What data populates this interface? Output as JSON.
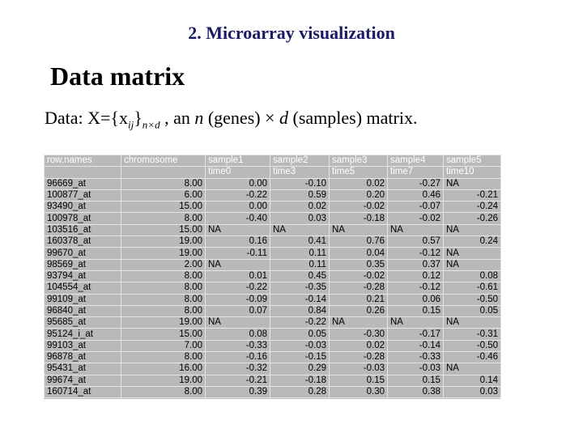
{
  "slide": {
    "title": "2. Microarray visualization",
    "heading": "Data matrix",
    "desc": {
      "prefix": "Data: X={x",
      "sub_ij": "ij",
      "brace": "}",
      "sub_nd": "n×d",
      "middle": " , an ",
      "n": "n",
      "genes": " (genes) × ",
      "d": "d",
      "suffix": " (samples)  matrix."
    }
  },
  "table": {
    "header1": [
      "row.names",
      "chromosome",
      "sample1",
      "sample2",
      "sample3",
      "sample4",
      "sample5"
    ],
    "header2": [
      "",
      "",
      "time0",
      "time3",
      "time5",
      "time7",
      "time10"
    ],
    "rows": [
      [
        "96669_at",
        "8.00",
        "0.00",
        "-0.10",
        "0.02",
        "-0.27",
        "NA"
      ],
      [
        "100877_at",
        "6.00",
        "-0.22",
        "0.59",
        "0.20",
        "0.46",
        "-0.21"
      ],
      [
        "93490_at",
        "15.00",
        "0.00",
        "0.02",
        "-0.02",
        "-0.07",
        "-0.24"
      ],
      [
        "100978_at",
        "8.00",
        "-0.40",
        "0.03",
        "-0.18",
        "-0.02",
        "-0.26"
      ],
      [
        "103516_at",
        "15.00",
        "NA",
        "NA",
        "NA",
        "NA",
        "NA"
      ],
      [
        "160378_at",
        "19.00",
        "0.16",
        "0.41",
        "0.76",
        "0.57",
        "0.24"
      ],
      [
        "99670_at",
        "19.00",
        "-0.11",
        "0.11",
        "0.04",
        "-0.12",
        "NA"
      ],
      [
        "98569_at",
        "2.00",
        "NA",
        "0.11",
        "0.35",
        "0.37",
        "NA"
      ],
      [
        "93794_at",
        "8.00",
        "0.01",
        "0.45",
        "-0.02",
        "0.12",
        "0.08"
      ],
      [
        "104554_at",
        "8.00",
        "-0.22",
        "-0.35",
        "-0.28",
        "-0.12",
        "-0.61"
      ],
      [
        "99109_at",
        "8.00",
        "-0.09",
        "-0.14",
        "0.21",
        "0.06",
        "-0.50"
      ],
      [
        "96840_at",
        "8.00",
        "0.07",
        "0.84",
        "0.26",
        "0.15",
        "0.05"
      ],
      [
        "95685_at",
        "19.00",
        "NA",
        "-0.22",
        "NA",
        "NA",
        "NA"
      ],
      [
        "95124_i_at",
        "15.00",
        "0.08",
        "0.05",
        "-0.30",
        "-0.17",
        "-0.31"
      ],
      [
        "99103_at",
        "7.00",
        "-0.33",
        "-0.03",
        "0.02",
        "-0.14",
        "-0.50"
      ],
      [
        "96878_at",
        "8.00",
        "-0.16",
        "-0.15",
        "-0.28",
        "-0.33",
        "-0.46"
      ],
      [
        "95431_at",
        "16.00",
        "-0.32",
        "0.29",
        "-0.03",
        "-0.03",
        "NA"
      ],
      [
        "99674_at",
        "19.00",
        "-0.21",
        "-0.18",
        "0.15",
        "0.15",
        "0.14"
      ],
      [
        "160714_at",
        "8.00",
        "0.39",
        "0.28",
        "0.30",
        "0.38",
        "0.03"
      ]
    ]
  }
}
